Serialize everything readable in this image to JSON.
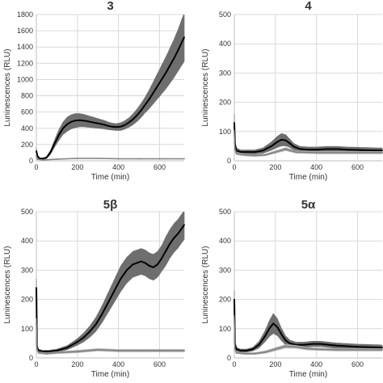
{
  "chart_data": [
    {
      "type": "line",
      "title": "3",
      "xlabel": "Time (min)",
      "ylabel": "Luninescences (RLU)",
      "xlim": [
        0,
        720
      ],
      "ylim": [
        0,
        1800
      ],
      "xticks": [
        0,
        200,
        400,
        600
      ],
      "yticks": [
        0,
        200,
        400,
        600,
        800,
        1000,
        1200,
        1400,
        1600,
        1800
      ],
      "grid": true,
      "series": [
        {
          "color": "#000000",
          "x": [
            0,
            5,
            15,
            30,
            50,
            70,
            90,
            110,
            130,
            150,
            170,
            190,
            210,
            230,
            250,
            270,
            290,
            310,
            330,
            350,
            370,
            390,
            410,
            430,
            450,
            470,
            490,
            510,
            530,
            550,
            570,
            590,
            610,
            630,
            650,
            670,
            690,
            710,
            720
          ],
          "y": [
            120,
            60,
            30,
            25,
            40,
            110,
            220,
            320,
            400,
            450,
            480,
            495,
            500,
            495,
            485,
            475,
            465,
            455,
            445,
            430,
            420,
            415,
            420,
            440,
            470,
            510,
            560,
            620,
            690,
            760,
            840,
            920,
            1000,
            1080,
            1170,
            1260,
            1360,
            1470,
            1520
          ],
          "error": [
            40,
            20,
            10,
            10,
            15,
            30,
            50,
            70,
            80,
            90,
            90,
            90,
            85,
            80,
            75,
            70,
            65,
            60,
            55,
            50,
            45,
            45,
            50,
            55,
            60,
            70,
            80,
            90,
            100,
            120,
            140,
            160,
            180,
            200,
            220,
            240,
            260,
            290,
            300
          ]
        },
        {
          "color": "#808080",
          "x": [
            0,
            5,
            30,
            100,
            200,
            300,
            400,
            500,
            600,
            720
          ],
          "y": [
            60,
            20,
            10,
            20,
            30,
            30,
            25,
            25,
            25,
            25
          ],
          "error": [
            10,
            5,
            3,
            5,
            5,
            5,
            5,
            5,
            5,
            5
          ]
        }
      ]
    },
    {
      "type": "line",
      "title": "4",
      "xlabel": "Time (min)",
      "ylabel": "Luninescences (RLU)",
      "xlim": [
        0,
        720
      ],
      "ylim": [
        0,
        500
      ],
      "xticks": [
        0,
        200,
        400,
        600
      ],
      "yticks": [
        0,
        100,
        200,
        300,
        400,
        500
      ],
      "grid": true,
      "series": [
        {
          "color": "#000000",
          "x": [
            0,
            3,
            10,
            30,
            60,
            100,
            140,
            180,
            210,
            230,
            250,
            270,
            290,
            320,
            360,
            400,
            450,
            500,
            550,
            600,
            650,
            700,
            720
          ],
          "y": [
            130,
            60,
            35,
            30,
            30,
            30,
            35,
            50,
            65,
            72,
            70,
            60,
            48,
            40,
            38,
            38,
            40,
            40,
            38,
            37,
            36,
            35,
            35
          ],
          "error": [
            30,
            15,
            10,
            8,
            8,
            8,
            10,
            15,
            20,
            22,
            20,
            15,
            12,
            10,
            10,
            10,
            10,
            10,
            10,
            10,
            10,
            10,
            10
          ]
        },
        {
          "color": "#808080",
          "x": [
            0,
            3,
            10,
            50,
            100,
            150,
            200,
            250,
            300,
            400,
            500,
            600,
            720
          ],
          "y": [
            90,
            40,
            25,
            20,
            18,
            20,
            30,
            40,
            30,
            28,
            28,
            28,
            28
          ],
          "error": [
            15,
            8,
            5,
            4,
            4,
            4,
            5,
            6,
            5,
            5,
            5,
            5,
            5
          ]
        }
      ]
    },
    {
      "type": "line",
      "title": "5β",
      "xlabel": "Time (min)",
      "ylabel": "Luninescences (RLU)",
      "xlim": [
        0,
        720
      ],
      "ylim": [
        0,
        500
      ],
      "xticks": [
        0,
        200,
        400,
        600
      ],
      "yticks": [
        0,
        100,
        200,
        300,
        400,
        500
      ],
      "grid": true,
      "series": [
        {
          "color": "#000000",
          "x": [
            0,
            3,
            10,
            30,
            60,
            100,
            150,
            200,
            230,
            260,
            290,
            320,
            350,
            380,
            410,
            440,
            470,
            490,
            510,
            530,
            550,
            570,
            590,
            610,
            630,
            650,
            670,
            690,
            710,
            720
          ],
          "y": [
            240,
            40,
            25,
            22,
            22,
            25,
            35,
            55,
            70,
            90,
            115,
            150,
            190,
            230,
            270,
            300,
            320,
            325,
            330,
            325,
            315,
            310,
            320,
            340,
            365,
            390,
            410,
            425,
            445,
            455
          ],
          "error": [
            30,
            10,
            6,
            5,
            5,
            6,
            8,
            12,
            16,
            20,
            25,
            30,
            35,
            40,
            45,
            45,
            45,
            45,
            45,
            45,
            45,
            45,
            45,
            45,
            50,
            50,
            50,
            50,
            50,
            50
          ]
        },
        {
          "color": "#808080",
          "x": [
            0,
            3,
            10,
            50,
            100,
            200,
            300,
            400,
            500,
            600,
            720
          ],
          "y": [
            120,
            30,
            18,
            15,
            18,
            22,
            28,
            25,
            25,
            25,
            25
          ],
          "error": [
            15,
            6,
            4,
            4,
            4,
            5,
            5,
            5,
            5,
            5,
            5
          ]
        }
      ]
    },
    {
      "type": "line",
      "title": "5α",
      "xlabel": "Time (min)",
      "ylabel": "Luninescences (RLU)",
      "xlim": [
        0,
        720
      ],
      "ylim": [
        0,
        500
      ],
      "xticks": [
        0,
        200,
        400,
        600
      ],
      "yticks": [
        0,
        100,
        200,
        300,
        400,
        500
      ],
      "grid": true,
      "series": [
        {
          "color": "#000000",
          "x": [
            0,
            3,
            10,
            30,
            60,
            90,
            120,
            150,
            170,
            190,
            210,
            230,
            250,
            270,
            300,
            340,
            380,
            420,
            460,
            500,
            550,
            600,
            650,
            700,
            720
          ],
          "y": [
            200,
            50,
            30,
            25,
            25,
            30,
            45,
            75,
            100,
            118,
            105,
            80,
            60,
            50,
            45,
            45,
            48,
            48,
            45,
            42,
            40,
            38,
            37,
            36,
            35
          ],
          "error": [
            30,
            10,
            7,
            6,
            6,
            7,
            12,
            20,
            28,
            35,
            30,
            22,
            16,
            12,
            10,
            10,
            10,
            10,
            10,
            10,
            10,
            10,
            10,
            10,
            10
          ]
        },
        {
          "color": "#808080",
          "x": [
            0,
            3,
            10,
            50,
            100,
            150,
            200,
            250,
            300,
            350,
            400,
            500,
            600,
            720
          ],
          "y": [
            130,
            30,
            18,
            15,
            15,
            20,
            30,
            40,
            38,
            32,
            30,
            28,
            28,
            28
          ],
          "error": [
            15,
            6,
            4,
            4,
            4,
            5,
            6,
            7,
            6,
            5,
            5,
            5,
            5,
            5
          ]
        }
      ]
    }
  ]
}
